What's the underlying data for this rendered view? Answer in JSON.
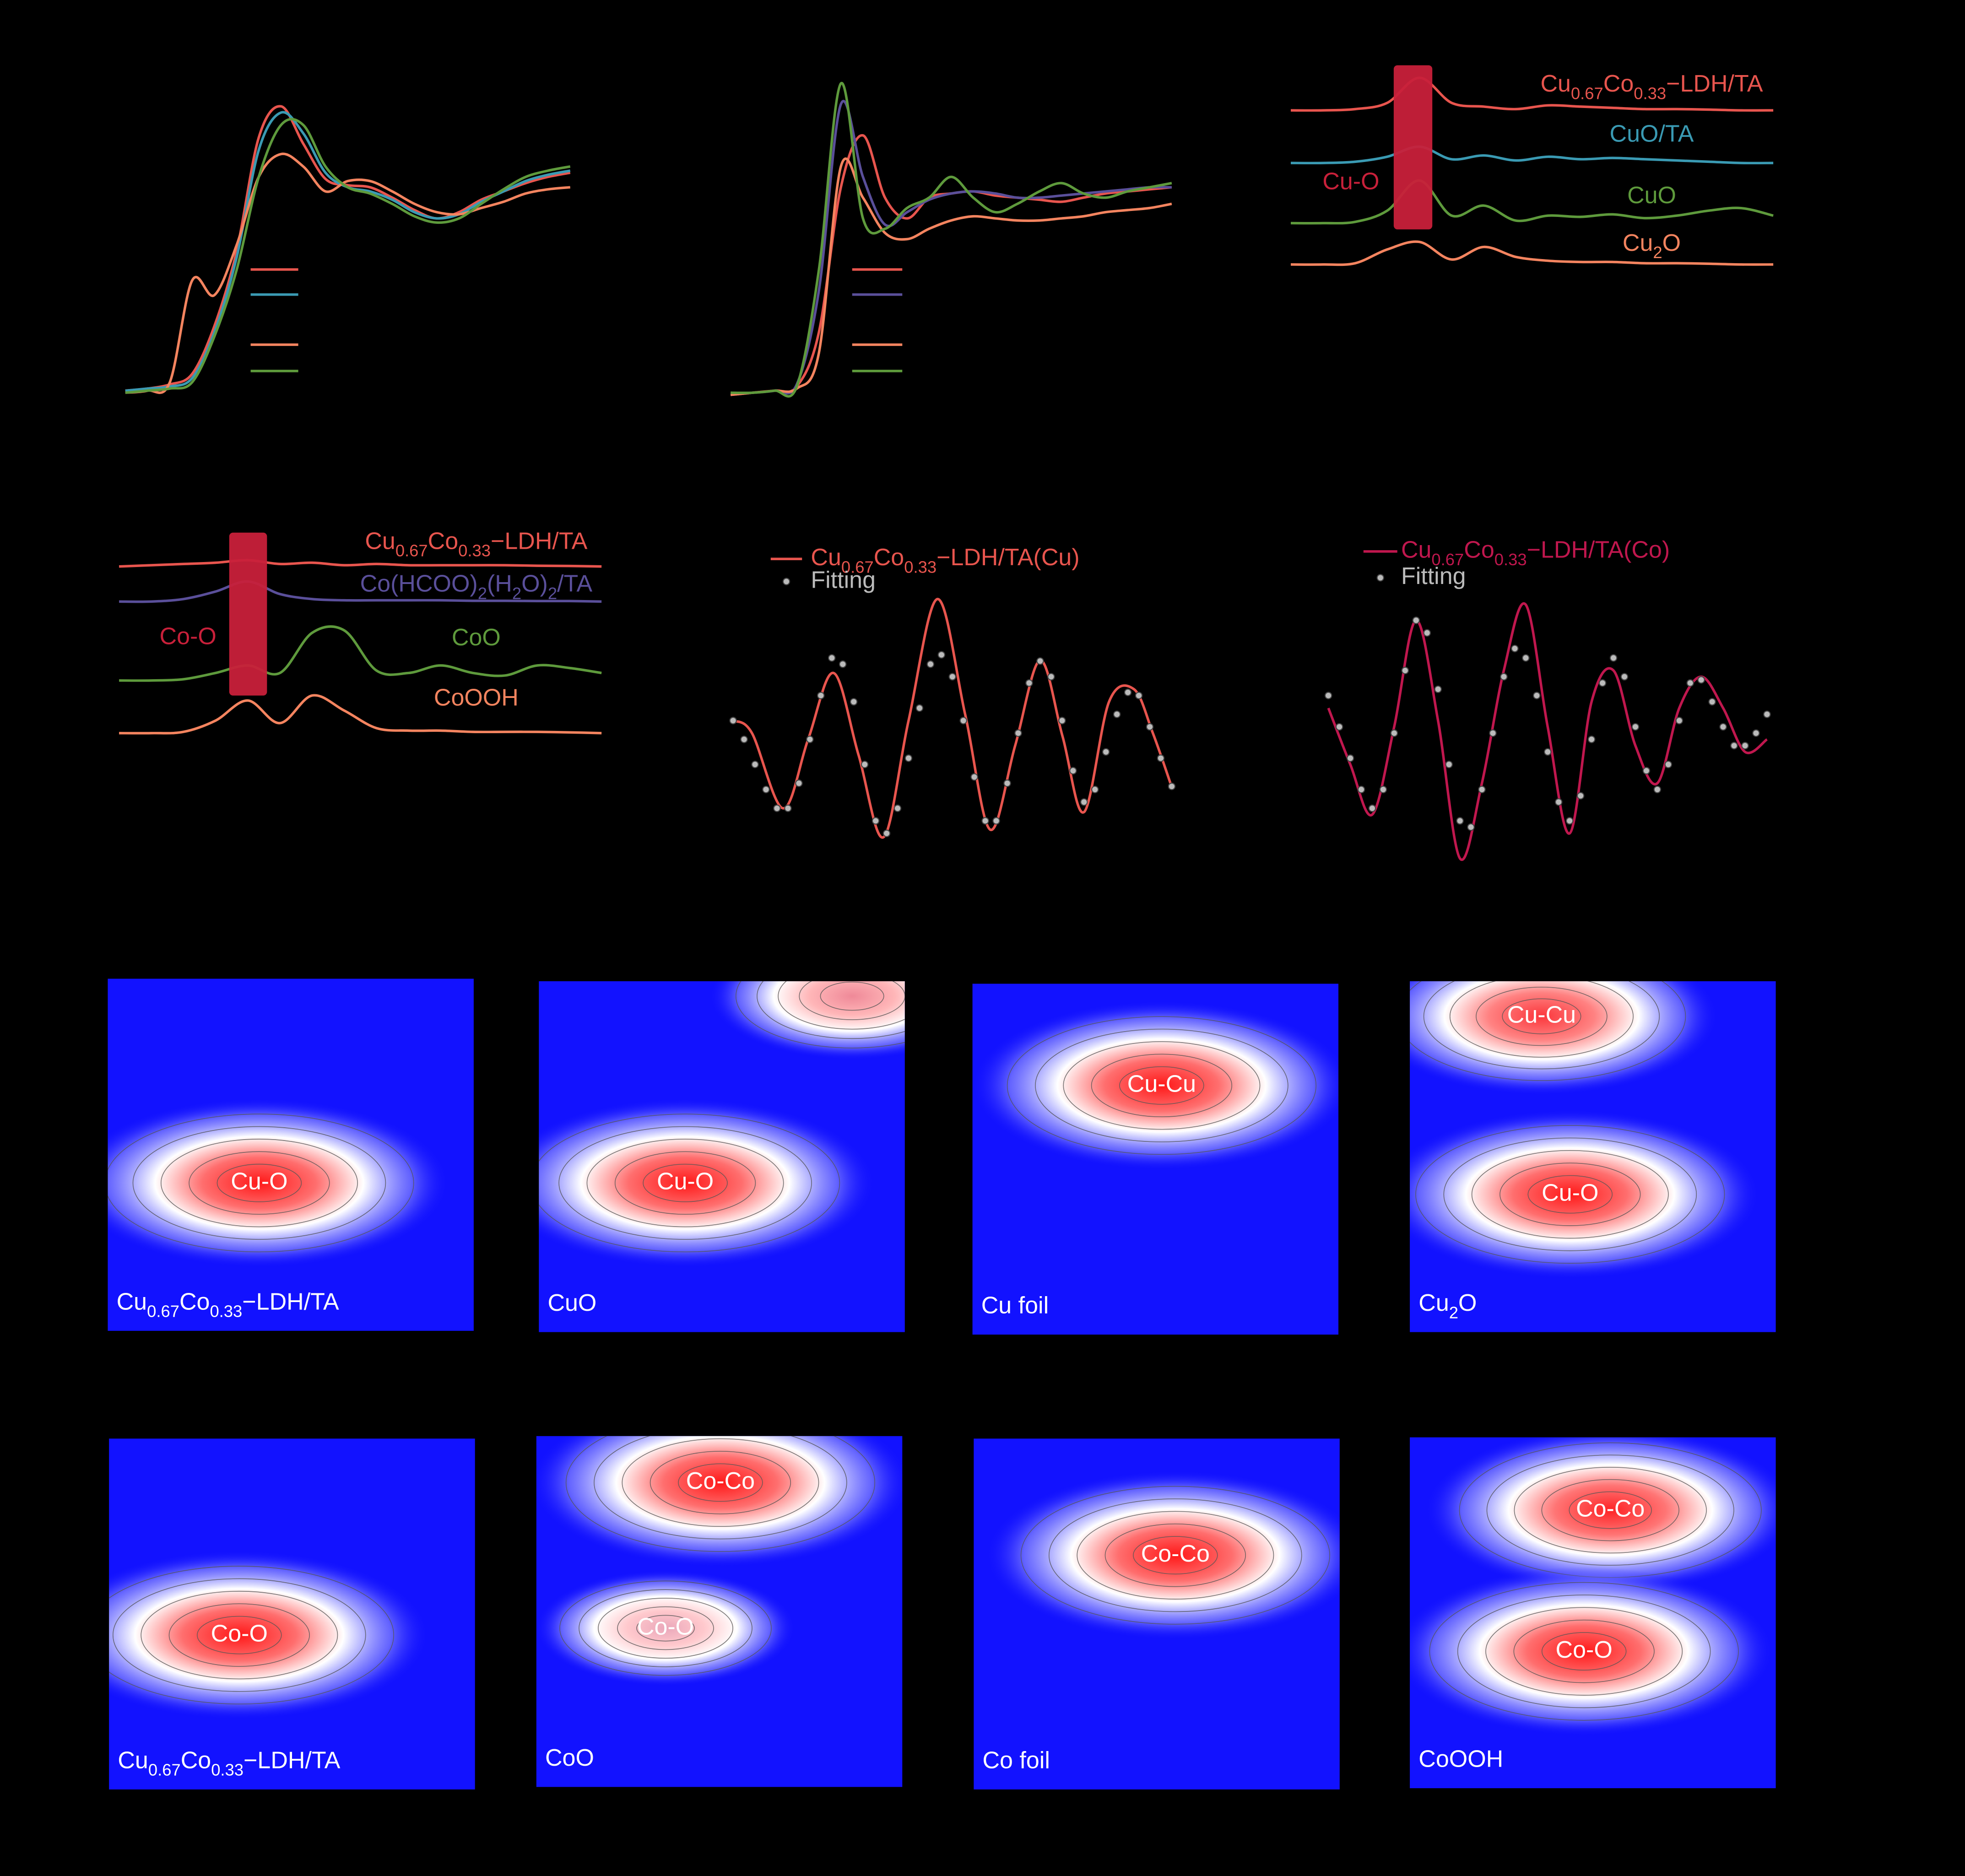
{
  "chart_data": [
    {
      "type": "line",
      "xlim": [
        8975,
        9035
      ],
      "ylim": [
        0,
        1.6
      ],
      "x": [
        8975,
        8978,
        8981,
        8984,
        8987,
        8990,
        8993,
        8996,
        8999,
        9002,
        9005,
        9008,
        9011,
        9014,
        9017,
        9020,
        9023,
        9026,
        9029,
        9032,
        9035
      ],
      "series": [
        {
          "color": "#e8554e",
          "values": [
            0.02,
            0.03,
            0.05,
            0.1,
            0.33,
            0.69,
            1.24,
            1.39,
            1.21,
            1.04,
            1.01,
            1.0,
            0.95,
            0.89,
            0.85,
            0.88,
            0.94,
            0.98,
            1.02,
            1.05,
            1.07
          ]
        },
        {
          "color": "#3a9ab3",
          "values": [
            0.02,
            0.03,
            0.04,
            0.08,
            0.3,
            0.66,
            1.18,
            1.36,
            1.26,
            1.07,
            1.0,
            0.98,
            0.94,
            0.88,
            0.85,
            0.87,
            0.93,
            0.98,
            1.03,
            1.06,
            1.08
          ]
        },
        {
          "color": "#f4845f",
          "values": [
            0.01,
            0.02,
            0.06,
            0.55,
            0.48,
            0.72,
            1.05,
            1.16,
            1.1,
            0.98,
            1.03,
            1.03,
            0.98,
            0.92,
            0.88,
            0.87,
            0.9,
            0.93,
            0.97,
            0.99,
            1.0
          ]
        },
        {
          "color": "#5e9a3c",
          "values": [
            0.01,
            0.02,
            0.03,
            0.06,
            0.28,
            0.6,
            1.05,
            1.3,
            1.3,
            1.1,
            1.0,
            0.97,
            0.92,
            0.86,
            0.83,
            0.85,
            0.92,
            0.99,
            1.05,
            1.08,
            1.1
          ]
        }
      ]
    },
    {
      "type": "line",
      "xlim": [
        7700,
        7760
      ],
      "ylim": [
        0,
        1.6
      ],
      "x": [
        7700,
        7703,
        7706,
        7709,
        7712,
        7715,
        7718,
        7721,
        7724,
        7727,
        7730,
        7733,
        7736,
        7739,
        7742,
        7745,
        7748,
        7751,
        7754,
        7757,
        7760
      ],
      "series": [
        {
          "color": "#e8554e",
          "values": [
            0.0,
            0.01,
            0.02,
            0.04,
            0.3,
            1.0,
            1.25,
            0.95,
            0.85,
            0.95,
            0.97,
            0.98,
            0.96,
            0.95,
            0.94,
            0.93,
            0.95,
            0.97,
            0.98,
            0.99,
            1.0
          ]
        },
        {
          "color": "#5a4f9a",
          "values": [
            0.0,
            0.01,
            0.02,
            0.05,
            0.5,
            1.4,
            1.05,
            0.82,
            0.88,
            0.94,
            0.97,
            0.98,
            0.97,
            0.95,
            0.95,
            0.96,
            0.97,
            0.98,
            0.99,
            1.0,
            1.0
          ]
        },
        {
          "color": "#f4845f",
          "values": [
            0.0,
            0.01,
            0.02,
            0.03,
            0.2,
            1.1,
            0.95,
            0.78,
            0.75,
            0.8,
            0.84,
            0.86,
            0.85,
            0.84,
            0.84,
            0.85,
            0.86,
            0.88,
            0.89,
            0.9,
            0.92
          ]
        },
        {
          "color": "#5e9a3c",
          "values": [
            0.01,
            0.01,
            0.02,
            0.04,
            0.6,
            1.5,
            0.85,
            0.8,
            0.9,
            0.95,
            1.05,
            0.95,
            0.88,
            0.92,
            0.98,
            1.02,
            0.97,
            0.95,
            0.98,
            1.0,
            1.02
          ]
        }
      ]
    },
    {
      "type": "ridgeline",
      "xlim": [
        0,
        6
      ],
      "band": [
        1.28,
        1.76
      ],
      "band_color": "#c8203a",
      "annotation": "Cu-O",
      "x": [
        0,
        0.4,
        0.8,
        1.2,
        1.6,
        2.0,
        2.4,
        2.8,
        3.2,
        3.6,
        4.0,
        4.4,
        4.8,
        5.2,
        5.6,
        6.0
      ],
      "series": [
        {
          "name": "Cu0.67Co0.33−LDH/TA",
          "color": "#e8554e",
          "values": [
            0,
            0,
            0.05,
            0.3,
            1.3,
            0.3,
            0.15,
            0.05,
            0.2,
            0.15,
            0.1,
            0.05,
            0.05,
            0.03,
            0,
            0
          ]
        },
        {
          "name": "CuO/TA",
          "color": "#3a9ab3",
          "values": [
            0,
            0,
            0.05,
            0.25,
            0.65,
            0.15,
            0.3,
            0.1,
            0.25,
            0.15,
            0.2,
            0.15,
            0.1,
            0.05,
            0,
            0
          ]
        },
        {
          "name": "CuO",
          "color": "#5e9a3c",
          "values": [
            0,
            0,
            0.05,
            0.5,
            1.7,
            0.3,
            0.7,
            0.1,
            0.3,
            0.25,
            0.35,
            0.2,
            0.3,
            0.5,
            0.6,
            0.3
          ]
        },
        {
          "name": "Cu2O",
          "color": "#f4845f",
          "values": [
            0,
            0,
            0.05,
            0.6,
            0.9,
            0.2,
            0.7,
            0.3,
            0.15,
            0.1,
            0.1,
            0.05,
            0.05,
            0.03,
            0,
            0
          ]
        }
      ]
    },
    {
      "type": "ridgeline",
      "xlim": [
        0,
        6
      ],
      "band": [
        1.37,
        1.84
      ],
      "band_color": "#c8203a",
      "annotation": "Co-O",
      "x": [
        0,
        0.4,
        0.8,
        1.2,
        1.6,
        2.0,
        2.4,
        2.8,
        3.2,
        3.6,
        4.0,
        4.4,
        4.8,
        5.2,
        5.6,
        6.0
      ],
      "series": [
        {
          "name": "Cu0.67Co0.33−LDH/TA",
          "color": "#e8554e",
          "values": [
            0,
            0.05,
            0.1,
            0.15,
            0.25,
            0.1,
            0.15,
            0.05,
            0.1,
            0.05,
            0.05,
            0.05,
            0.05,
            0.03,
            0.02,
            0
          ]
        },
        {
          "name": "Co(HCOO)2(H2O)2/TA",
          "color": "#5a4f9a",
          "values": [
            0,
            0,
            0.1,
            0.4,
            0.8,
            0.3,
            0.1,
            0.05,
            0.05,
            0.05,
            0.05,
            0.03,
            0.03,
            0.02,
            0.02,
            0
          ]
        },
        {
          "name": "CoO",
          "color": "#5e9a3c",
          "values": [
            0,
            0,
            0.05,
            0.3,
            0.6,
            0.3,
            1.9,
            2.0,
            0.4,
            0.3,
            0.6,
            0.3,
            0.2,
            0.6,
            0.5,
            0.3
          ]
        },
        {
          "name": "CoOOH",
          "color": "#f4845f",
          "values": [
            0,
            0,
            0.05,
            0.5,
            1.3,
            0.4,
            1.5,
            0.9,
            0.2,
            0.1,
            0.1,
            0.05,
            0.05,
            0.05,
            0.03,
            0
          ]
        }
      ]
    },
    {
      "type": "line",
      "xlim": [
        2,
        12
      ],
      "ylim": [
        -2.2,
        2.2
      ],
      "series": [
        {
          "name": "Cu0.67Co0.33−LDH/TA(Cu)",
          "color": "#e8554e",
          "x": [
            2.0,
            2.43,
            3.14,
            3.71,
            4.29,
            4.86,
            5.43,
            6.0,
            6.66,
            7.29,
            7.86,
            8.43,
            9.0,
            9.51,
            10.0,
            10.57,
            11.14,
            11.57,
            12.0
          ],
          "values": [
            -0.2,
            -0.4,
            -1.6,
            -0.5,
            0.56,
            -0.75,
            -2.06,
            -0.2,
            1.74,
            -0.1,
            -1.94,
            -0.6,
            0.76,
            -0.45,
            -1.66,
            0.1,
            0.3,
            -0.4,
            -1.26
          ]
        },
        {
          "name": "Fitting",
          "color": "#bbbbbb",
          "dots": true,
          "x": [
            2.0,
            2.25,
            2.5,
            2.75,
            3.0,
            3.25,
            3.5,
            3.75,
            4.0,
            4.25,
            4.5,
            4.75,
            5.0,
            5.25,
            5.5,
            5.75,
            6.0,
            6.25,
            6.5,
            6.75,
            7.0,
            7.25,
            7.5,
            7.75,
            8.0,
            8.25,
            8.5,
            8.75,
            9.0,
            9.25,
            9.5,
            9.75,
            10.0,
            10.25,
            10.5,
            10.75,
            11.0,
            11.25,
            11.5,
            11.75,
            12.0
          ],
          "values": [
            -0.2,
            -0.5,
            -0.9,
            -1.3,
            -1.6,
            -1.6,
            -1.2,
            -0.5,
            0.2,
            0.8,
            0.7,
            0.1,
            -0.9,
            -1.8,
            -2.0,
            -1.6,
            -0.8,
            0.0,
            0.7,
            0.85,
            0.5,
            -0.2,
            -1.1,
            -1.8,
            -1.8,
            -1.2,
            -0.4,
            0.4,
            0.75,
            0.5,
            -0.2,
            -1.0,
            -1.5,
            -1.3,
            -0.7,
            -0.1,
            0.25,
            0.2,
            -0.3,
            -0.8,
            -1.25
          ]
        }
      ]
    },
    {
      "type": "line",
      "xlim": [
        2,
        12
      ],
      "ylim": [
        -2.2,
        2.2
      ],
      "series": [
        {
          "name": "Cu0.67Co0.33−LDH/TA(Co)",
          "color": "#c0174e",
          "x": [
            2.0,
            2.5,
            3.0,
            3.5,
            4.0,
            4.5,
            5.0,
            5.5,
            6.0,
            6.5,
            7.0,
            7.5,
            8.0,
            8.5,
            9.0,
            9.5,
            10.0,
            10.5,
            11.0,
            11.5,
            12.0
          ],
          "values": [
            0.0,
            -0.9,
            -1.7,
            -0.3,
            1.4,
            -0.2,
            -2.4,
            -1.2,
            0.6,
            1.65,
            -0.3,
            -2.0,
            0.1,
            0.6,
            -0.6,
            -1.2,
            0.0,
            0.5,
            0.0,
            -0.7,
            -0.5
          ]
        },
        {
          "name": "Fitting",
          "color": "#bbbbbb",
          "dots": true,
          "x": [
            2.0,
            2.25,
            2.5,
            2.75,
            3.0,
            3.25,
            3.5,
            3.75,
            4.0,
            4.25,
            4.5,
            4.75,
            5.0,
            5.25,
            5.5,
            5.75,
            6.0,
            6.25,
            6.5,
            6.75,
            7.0,
            7.25,
            7.5,
            7.75,
            8.0,
            8.25,
            8.5,
            8.75,
            9.0,
            9.25,
            9.5,
            9.75,
            10.0,
            10.25,
            10.5,
            10.75,
            11.0,
            11.25,
            11.5,
            11.75,
            12.0
          ],
          "values": [
            0.2,
            -0.3,
            -0.8,
            -1.3,
            -1.6,
            -1.3,
            -0.4,
            0.6,
            1.4,
            1.2,
            0.3,
            -0.9,
            -1.8,
            -1.9,
            -1.3,
            -0.4,
            0.5,
            0.95,
            0.8,
            0.2,
            -0.7,
            -1.5,
            -1.8,
            -1.4,
            -0.5,
            0.4,
            0.8,
            0.5,
            -0.3,
            -1.0,
            -1.3,
            -0.9,
            -0.2,
            0.4,
            0.45,
            0.1,
            -0.3,
            -0.6,
            -0.6,
            -0.4,
            -0.1
          ]
        }
      ]
    },
    {
      "type": "contour",
      "label": "Cu0.67Co0.33−LDH/TA",
      "xlim": [
        2,
        12
      ],
      "ylim": [
        0,
        4
      ],
      "peaks": [
        {
          "label": "Cu-O",
          "x": 6.14,
          "y": 1.68,
          "value": 1
        }
      ]
    },
    {
      "type": "contour",
      "label": "CuO",
      "xlim": [
        2,
        12
      ],
      "ylim": [
        0,
        4
      ],
      "peaks": [
        {
          "label": "Cu-O",
          "x": 6.0,
          "y": 1.7,
          "value": 1
        },
        {
          "x": 10.56,
          "y": 3.83,
          "value": 0.45
        }
      ]
    },
    {
      "type": "contour",
      "label": "Cu foil",
      "xlim": [
        2,
        12
      ],
      "ylim": [
        0,
        4
      ],
      "peaks": [
        {
          "label": "Cu-Cu",
          "x": 7.17,
          "y": 2.84,
          "value": 1
        }
      ]
    },
    {
      "type": "contour",
      "label": "Cu2O",
      "xlim": [
        2,
        12
      ],
      "ylim": [
        0,
        4
      ],
      "peaks": [
        {
          "label": "Cu-Cu",
          "x": 5.6,
          "y": 3.6,
          "value": 0.85
        },
        {
          "label": "Cu-O",
          "x": 6.38,
          "y": 1.57,
          "value": 1
        }
      ]
    },
    {
      "type": "contour",
      "label": "Cu0.67Co0.33−LDH/TA",
      "xlim": [
        2,
        12
      ],
      "ylim": [
        0,
        4
      ],
      "peaks": [
        {
          "label": "Co-O",
          "x": 5.56,
          "y": 1.76,
          "value": 1
        }
      ]
    },
    {
      "type": "contour",
      "label": "CoO",
      "xlim": [
        2,
        12
      ],
      "ylim": [
        0,
        4
      ],
      "peaks": [
        {
          "label": "Co-Co",
          "x": 7.03,
          "y": 3.47,
          "value": 1
        },
        {
          "label": "Co-O",
          "x": 5.53,
          "y": 1.81,
          "value": 0.3
        }
      ]
    },
    {
      "type": "contour",
      "label": "Co foil",
      "xlim": [
        2,
        12
      ],
      "ylim": [
        0,
        4
      ],
      "peaks": [
        {
          "label": "Co-Co",
          "x": 7.51,
          "y": 2.67,
          "value": 1
        }
      ]
    },
    {
      "type": "contour",
      "label": "CoOOH",
      "xlim": [
        2,
        12
      ],
      "ylim": [
        0,
        4
      ],
      "peaks": [
        {
          "label": "Co-Co",
          "x": 7.48,
          "y": 3.17,
          "value": 0.95
        },
        {
          "label": "Co-O",
          "x": 6.76,
          "y": 1.56,
          "value": 1
        }
      ]
    }
  ]
}
